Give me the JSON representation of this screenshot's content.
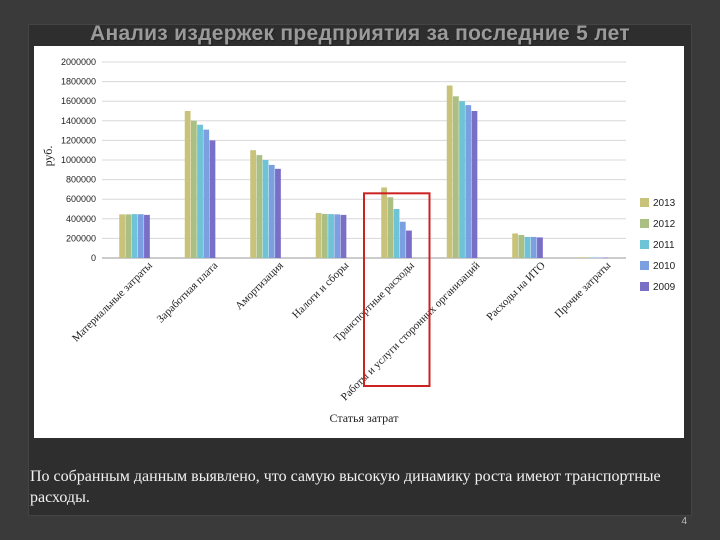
{
  "slide": {
    "title": "Анализ издержек предприятия за последние 5 лет",
    "caption": "По собранным данным выявлено, что самую высокую динамику роста имеют транспортные расходы.",
    "page_number": "4"
  },
  "highlight": {
    "category": "Транспортные расходы",
    "color": "#cc2222"
  },
  "chart_data": {
    "type": "bar",
    "title": "",
    "xlabel": "Статья затрат",
    "ylabel": "руб.",
    "ylim": [
      0,
      2000000
    ],
    "yticks": [
      "0",
      "200000",
      "400000",
      "600000",
      "800000",
      "1000000",
      "1200000",
      "1400000",
      "1600000",
      "1800000",
      "2000000"
    ],
    "grid": true,
    "legend_position": "right",
    "categories": [
      "Материальные затраты",
      "Заработная плата",
      "Амортизация",
      "Налоги и сборы",
      "Транспортные расходы",
      "Работы и услуги сторонних организаций",
      "Расходы на ИТО",
      "Прочие затраты"
    ],
    "series": [
      {
        "name": "2013",
        "color": "#c9c27a",
        "values": [
          445000,
          1500000,
          1100000,
          460000,
          720000,
          1760000,
          250000,
          8000
        ]
      },
      {
        "name": "2012",
        "color": "#a9bf84",
        "values": [
          445000,
          1400000,
          1050000,
          450000,
          620000,
          1650000,
          235000,
          7000
        ]
      },
      {
        "name": "2011",
        "color": "#6ec4d6",
        "values": [
          448000,
          1360000,
          1000000,
          448000,
          500000,
          1600000,
          215000,
          6000
        ]
      },
      {
        "name": "2010",
        "color": "#7b9fe0",
        "values": [
          447000,
          1310000,
          950000,
          445000,
          370000,
          1560000,
          215000,
          5000
        ]
      },
      {
        "name": "2009",
        "color": "#7a6fc7",
        "values": [
          440000,
          1200000,
          910000,
          440000,
          280000,
          1500000,
          210000,
          4000
        ]
      }
    ]
  }
}
